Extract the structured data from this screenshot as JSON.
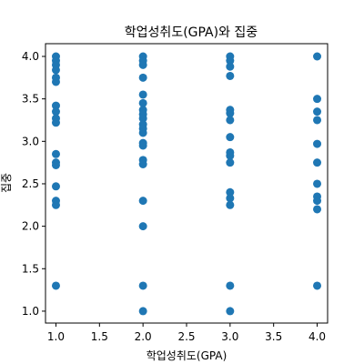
{
  "chart_data": {
    "type": "scatter",
    "title": "학업성취도(GPA)와 집중",
    "xlabel": "학업성취도(GPA)",
    "ylabel": "집중",
    "xlim": [
      0.88,
      4.12
    ],
    "ylim": [
      0.86,
      4.15
    ],
    "xticks": [
      "1.0",
      "1.5",
      "2.0",
      "2.5",
      "3.0",
      "3.5",
      "4.0"
    ],
    "yticks": [
      "1.0",
      "1.5",
      "2.0",
      "2.5",
      "3.0",
      "3.5",
      "4.0"
    ],
    "grid": false,
    "marker_color": "#1f77b4",
    "series": [
      {
        "points": [
          [
            1.0,
            4.0
          ],
          [
            1.0,
            3.95
          ],
          [
            1.0,
            3.9
          ],
          [
            1.0,
            3.84
          ],
          [
            1.0,
            3.75
          ],
          [
            1.0,
            3.7
          ],
          [
            1.0,
            3.42
          ],
          [
            1.0,
            3.35
          ],
          [
            1.0,
            3.27
          ],
          [
            1.0,
            3.22
          ],
          [
            1.0,
            2.85
          ],
          [
            1.0,
            2.75
          ],
          [
            1.0,
            2.72
          ],
          [
            1.0,
            2.47
          ],
          [
            1.0,
            2.3
          ],
          [
            1.0,
            2.25
          ],
          [
            1.0,
            1.3
          ],
          [
            2.0,
            4.0
          ],
          [
            2.0,
            3.95
          ],
          [
            2.0,
            3.9
          ],
          [
            2.0,
            3.75
          ],
          [
            2.0,
            3.55
          ],
          [
            2.0,
            3.45
          ],
          [
            2.0,
            3.37
          ],
          [
            2.0,
            3.32
          ],
          [
            2.0,
            3.27
          ],
          [
            2.0,
            3.2
          ],
          [
            2.0,
            3.15
          ],
          [
            2.0,
            3.1
          ],
          [
            2.0,
            2.98
          ],
          [
            2.0,
            2.95
          ],
          [
            2.0,
            2.78
          ],
          [
            2.0,
            2.73
          ],
          [
            2.0,
            2.3
          ],
          [
            2.0,
            2.0
          ],
          [
            2.0,
            1.3
          ],
          [
            2.0,
            1.0
          ],
          [
            3.0,
            4.0
          ],
          [
            3.0,
            3.95
          ],
          [
            3.0,
            3.88
          ],
          [
            3.0,
            3.77
          ],
          [
            3.0,
            3.37
          ],
          [
            3.0,
            3.33
          ],
          [
            3.0,
            3.25
          ],
          [
            3.0,
            3.05
          ],
          [
            3.0,
            2.87
          ],
          [
            3.0,
            2.83
          ],
          [
            3.0,
            2.75
          ],
          [
            3.0,
            2.4
          ],
          [
            3.0,
            2.33
          ],
          [
            3.0,
            2.25
          ],
          [
            3.0,
            1.3
          ],
          [
            3.0,
            1.0
          ],
          [
            4.0,
            4.0
          ],
          [
            4.0,
            3.5
          ],
          [
            4.0,
            3.35
          ],
          [
            4.0,
            3.25
          ],
          [
            4.0,
            2.97
          ],
          [
            4.0,
            2.75
          ],
          [
            4.0,
            2.5
          ],
          [
            4.0,
            2.35
          ],
          [
            4.0,
            2.3
          ],
          [
            4.0,
            2.2
          ],
          [
            4.0,
            1.3
          ]
        ]
      }
    ]
  }
}
